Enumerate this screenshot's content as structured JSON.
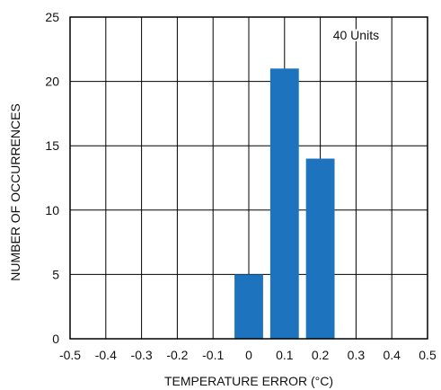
{
  "chart_data": {
    "type": "bar",
    "xlabel": "TEMPERATURE ERROR (°C)",
    "ylabel": "NUMBER OF OCCURRENCES",
    "xlim": [
      -0.5,
      0.5
    ],
    "ylim": [
      0,
      25
    ],
    "x_ticks": [
      "-0.5",
      "-0.4",
      "-0.3",
      "-0.2",
      "-0.1",
      "0",
      "0.1",
      "0.2",
      "0.3",
      "0.4",
      "0.5"
    ],
    "y_ticks": [
      "0",
      "5",
      "10",
      "15",
      "20",
      "25"
    ],
    "bars": [
      {
        "x": 0.0,
        "value": 5
      },
      {
        "x": 0.1,
        "value": 21
      },
      {
        "x": 0.2,
        "value": 14
      }
    ],
    "bar_width": 0.08,
    "bar_color": "#1e73be",
    "grid": true,
    "annotation": {
      "text": "40 Units",
      "x": 0.3,
      "y": 23.6
    }
  }
}
